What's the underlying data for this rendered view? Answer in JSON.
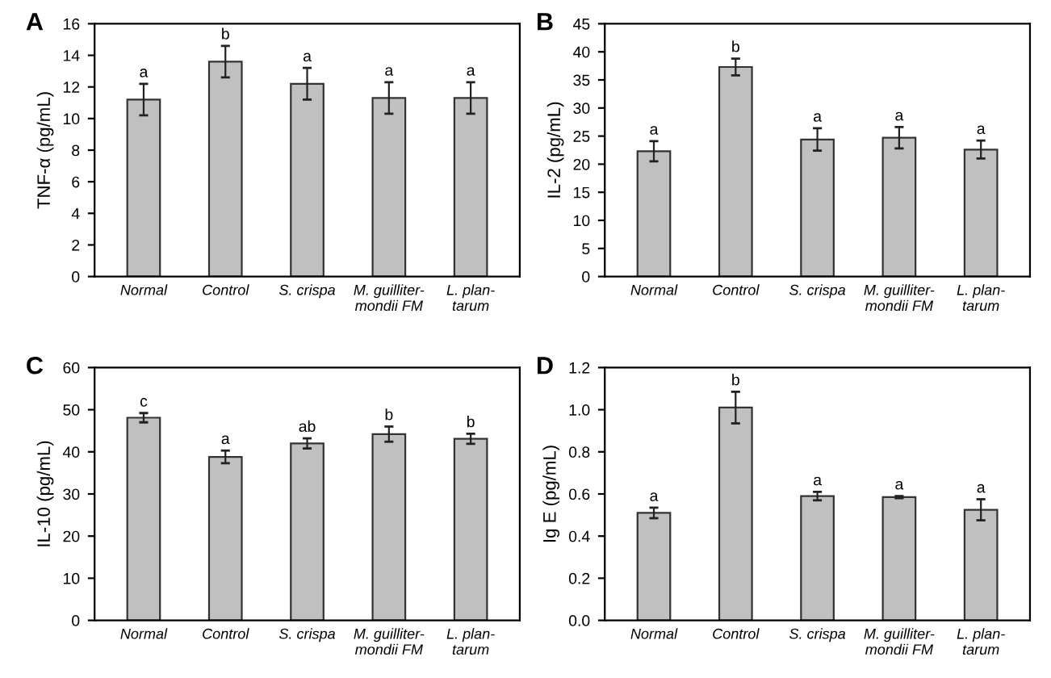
{
  "chart_data": [
    {
      "type": "bar",
      "title": "A",
      "ylabel": "TNF-α (pg/mL)",
      "categories": [
        "Normal",
        "Control",
        "S. crispa",
        "M. guilliter-\nmondii FM",
        "L. plan-\ntarum"
      ],
      "values": [
        11.2,
        13.6,
        12.2,
        11.3,
        11.3
      ],
      "errors": [
        1.0,
        1.0,
        1.0,
        1.0,
        1.0
      ],
      "color": "#c0c0c0",
      "ylim": [
        0,
        16
      ],
      "yticks": [
        0,
        2,
        4,
        6,
        8,
        10,
        12,
        14,
        16
      ],
      "annotations": [
        {
          "text": "a",
          "x": "Normal",
          "y": 11.2
        },
        {
          "text": "b",
          "x": "Control",
          "y": 13.6
        },
        {
          "text": "a",
          "x": "S. crispa",
          "y": 12.2
        },
        {
          "text": "a",
          "x": "M. guilliter-\nmondii FM",
          "y": 11.3
        },
        {
          "text": "a",
          "x": "L. plan-\ntarum",
          "y": 11.3
        }
      ]
    },
    {
      "type": "bar",
      "title": "B",
      "ylabel": "IL-2 (pg/mL)",
      "categories": [
        "Normal",
        "Control",
        "S. crispa",
        "M. guilliter-\nmondii FM",
        "L. plan-\ntarum"
      ],
      "values": [
        22.3,
        37.3,
        24.4,
        24.7,
        22.6
      ],
      "errors": [
        1.8,
        1.5,
        2.0,
        1.9,
        1.6
      ],
      "color": "#c0c0c0",
      "ylim": [
        0,
        45
      ],
      "yticks": [
        0,
        5,
        10,
        15,
        20,
        25,
        30,
        35,
        40,
        45
      ],
      "annotations": [
        {
          "text": "a",
          "x": "Normal",
          "y": 22.3
        },
        {
          "text": "b",
          "x": "Control",
          "y": 37.3
        },
        {
          "text": "a",
          "x": "S. crispa",
          "y": 24.4
        },
        {
          "text": "a",
          "x": "M. guilliter-\nmondii FM",
          "y": 24.7
        },
        {
          "text": "a",
          "x": "L. plan-\ntarum",
          "y": 22.6
        }
      ]
    },
    {
      "type": "bar",
      "title": "C",
      "ylabel": "IL-10 (pg/mL)",
      "categories": [
        "Normal",
        "Control",
        "S. crispa",
        "M. guilliter-\nmondii FM",
        "L. plan-\ntarum"
      ],
      "values": [
        48.1,
        38.8,
        42.0,
        44.2,
        43.1
      ],
      "errors": [
        1.1,
        1.5,
        1.2,
        1.8,
        1.2
      ],
      "color": "#c0c0c0",
      "ylim": [
        0,
        60
      ],
      "yticks": [
        0,
        10,
        20,
        30,
        40,
        50,
        60
      ],
      "annotations": [
        {
          "text": "c",
          "x": "Normal",
          "y": 48.1
        },
        {
          "text": "a",
          "x": "Control",
          "y": 38.8
        },
        {
          "text": "ab",
          "x": "S. crispa",
          "y": 42.0
        },
        {
          "text": "b",
          "x": "M. guilliter-\nmondii FM",
          "y": 44.2
        },
        {
          "text": "b",
          "x": "L. plan-\ntarum",
          "y": 43.1
        }
      ]
    },
    {
      "type": "bar",
      "title": "D",
      "ylabel": "Ig E (pg/mL)",
      "categories": [
        "Normal",
        "Control",
        "S. crispa",
        "M. guilliter-\nmondii FM",
        "L. plan-\ntarum"
      ],
      "values": [
        0.51,
        1.01,
        0.59,
        0.585,
        0.525
      ],
      "errors": [
        0.025,
        0.075,
        0.02,
        0.005,
        0.05
      ],
      "color": "#c0c0c0",
      "ylim": [
        0,
        1.2
      ],
      "yticks": [
        {
          "value": 0,
          "label": "0.0"
        },
        0.2,
        0.4,
        0.6,
        0.8,
        {
          "value": 1,
          "label": "1.0"
        },
        1.2
      ],
      "annotations": [
        {
          "text": "a",
          "x": "Normal",
          "y": 0.51
        },
        {
          "text": "b",
          "x": "Control",
          "y": 1.01
        },
        {
          "text": "a",
          "x": "S. crispa",
          "y": 0.59
        },
        {
          "text": "a",
          "x": "M. guilliter-\nmondii FM",
          "y": 0.585
        },
        {
          "text": "a",
          "x": "L. plan-\ntarum",
          "y": 0.525
        }
      ]
    }
  ]
}
